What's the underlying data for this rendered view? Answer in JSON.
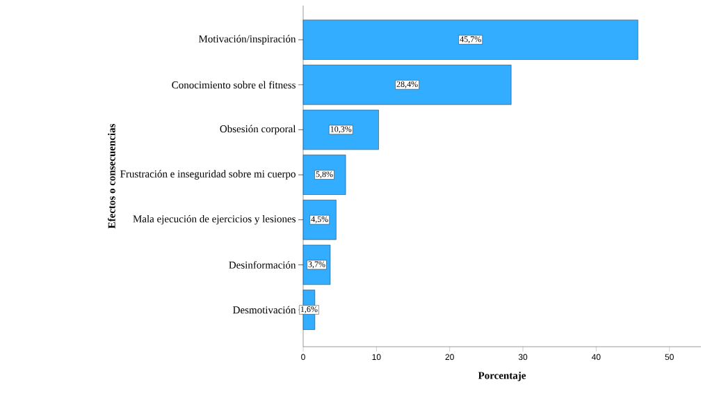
{
  "chart_data": {
    "type": "bar",
    "orientation": "horizontal",
    "xlabel": "Porcentaje",
    "ylabel": "Efectos o consecuencias",
    "categories": [
      "Motivación/inspiración",
      "Conocimiento sobre el fitness",
      "Obsesión corporal",
      "Frustración e inseguridad sobre mi cuerpo",
      "Mala ejecución de ejercicios y lesiones",
      "Desinformación",
      "Desmotivación"
    ],
    "values": [
      45.7,
      28.4,
      10.3,
      5.8,
      4.5,
      3.7,
      1.6
    ],
    "value_labels": [
      "45,7%",
      "28,4%",
      "10,3%",
      "5,8%",
      "4,5%",
      "3,7%",
      "1,6%"
    ],
    "color": "#33adff",
    "xlim": [
      0,
      54.3
    ],
    "xticks": [
      0,
      10,
      20,
      30,
      40,
      50
    ]
  }
}
